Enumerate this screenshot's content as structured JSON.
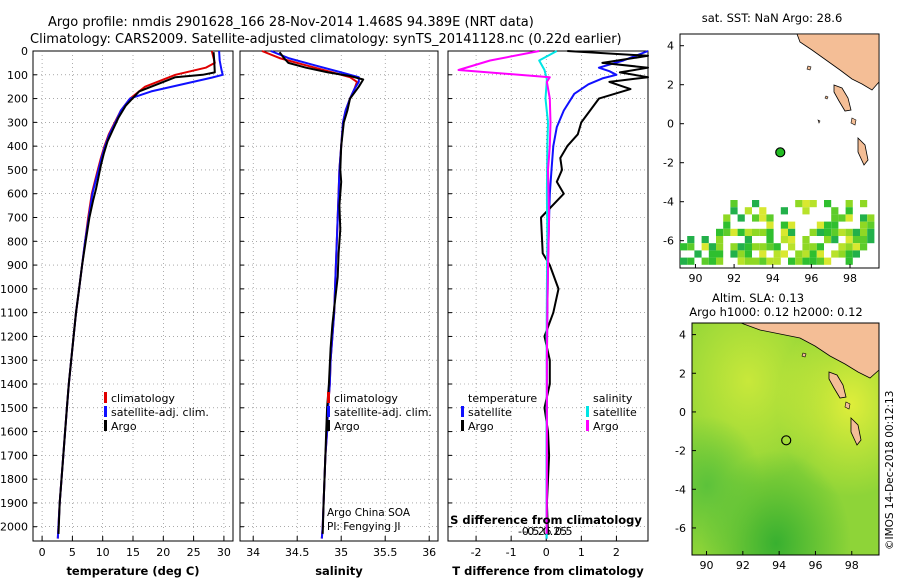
{
  "header": {
    "title_line1": "Argo profile: nmdis 2901628_166 28-Nov-2014 1.468S 94.389E (NRT data)",
    "title_line2": "Climatology: CARS2009. Satellite-adjusted climatology: synTS_20141128.nc (0.22d earlier)"
  },
  "colors": {
    "climatology": "#e00000",
    "satellite": "#1010ff",
    "argo": "#000000",
    "sal_satellite": "#00e5e5",
    "sal_argo": "#ff00ff"
  },
  "depth_axis": {
    "min": 0,
    "max": 2060,
    "ticks": [
      0,
      100,
      200,
      300,
      400,
      500,
      600,
      700,
      800,
      900,
      1000,
      1100,
      1200,
      1300,
      1400,
      1500,
      1600,
      1700,
      1800,
      1900,
      2000
    ]
  },
  "chart_data": [
    {
      "type": "line",
      "id": "temperature",
      "xlabel": "temperature (deg C)",
      "xlim": [
        -1.5,
        31.5
      ],
      "xticks": [
        0,
        5,
        10,
        15,
        20,
        25,
        30
      ],
      "legend": [
        "climatology",
        "satellite-adj. clim.",
        "Argo"
      ],
      "series": [
        {
          "name": "climatology",
          "color_key": "climatology",
          "x": [
            28.0,
            28.5,
            27.0,
            22.0,
            17.0,
            14.5,
            13.0,
            12.0,
            11.0,
            10.3,
            9.7,
            9.2,
            8.7,
            8.2,
            7.6,
            7.1,
            6.6,
            6.1,
            5.6,
            5.2,
            4.8,
            4.4,
            4.1,
            3.8,
            3.5,
            3.2,
            2.9,
            2.6
          ],
          "depth": [
            0,
            50,
            70,
            100,
            150,
            200,
            250,
            300,
            350,
            400,
            450,
            500,
            550,
            600,
            700,
            800,
            900,
            1000,
            1100,
            1200,
            1300,
            1400,
            1500,
            1600,
            1700,
            1800,
            1900,
            2050
          ]
        },
        {
          "name": "satellite-adj. clim.",
          "color_key": "satellite",
          "x": [
            29.2,
            29.3,
            29.6,
            29.8,
            28.0,
            18.0,
            14.5,
            13.0,
            12.1,
            11.1,
            10.4,
            9.8,
            9.3,
            8.8,
            8.3,
            7.7,
            7.1,
            6.6,
            6.1,
            5.6,
            5.2,
            4.8,
            4.4,
            4.1,
            3.8,
            3.5,
            3.2,
            2.9,
            2.6
          ],
          "depth": [
            0,
            40,
            80,
            100,
            112,
            170,
            200,
            250,
            300,
            350,
            400,
            450,
            500,
            550,
            600,
            700,
            800,
            900,
            1000,
            1100,
            1200,
            1300,
            1400,
            1500,
            1600,
            1700,
            1800,
            1900,
            2050
          ]
        },
        {
          "name": "Argo",
          "color_key": "argo",
          "x": [
            28.3,
            28.4,
            28.5,
            26.5,
            22.0,
            16.0,
            13.8,
            12.6,
            11.7,
            10.8,
            10.2,
            9.7,
            9.3,
            8.9,
            8.4,
            7.8,
            7.2,
            6.6,
            6.1,
            5.6,
            5.2,
            4.8,
            4.4,
            4.1,
            3.8,
            3.5,
            3.2,
            2.9,
            2.7
          ],
          "depth": [
            5,
            40,
            90,
            100,
            110,
            170,
            230,
            280,
            330,
            380,
            430,
            480,
            530,
            580,
            630,
            700,
            800,
            900,
            1000,
            1100,
            1200,
            1300,
            1400,
            1500,
            1600,
            1700,
            1800,
            1900,
            2030
          ]
        }
      ]
    },
    {
      "type": "line",
      "id": "salinity",
      "xlabel": "salinity",
      "xlim": [
        33.85,
        36.1
      ],
      "xticks": [
        34,
        34.5,
        35,
        35.5,
        36
      ],
      "xticklabels": [
        "34",
        "34.5",
        "35",
        "35.5",
        "36"
      ],
      "legend": [
        "climatology",
        "satellite-adj. clim.",
        "Argo"
      ],
      "annotation": [
        "Argo China SOA",
        "PI: Fengying JI"
      ],
      "series": [
        {
          "name": "climatology",
          "color_key": "climatology",
          "x": [
            34.1,
            34.3,
            34.6,
            34.9,
            35.1,
            35.18,
            35.15,
            35.1,
            35.05,
            35.02,
            35.0,
            34.98,
            34.97,
            34.96,
            34.95,
            34.94,
            34.93,
            34.92,
            34.9,
            34.88,
            34.87,
            34.85,
            34.84,
            34.82,
            34.81,
            34.8,
            34.79,
            34.78
          ],
          "depth": [
            0,
            30,
            60,
            90,
            110,
            130,
            160,
            200,
            250,
            300,
            400,
            500,
            600,
            700,
            800,
            900,
            1000,
            1100,
            1200,
            1300,
            1400,
            1500,
            1600,
            1700,
            1800,
            1900,
            2000,
            2050
          ]
        },
        {
          "name": "satellite-adj. clim.",
          "color_key": "satellite",
          "x": [
            34.2,
            34.4,
            34.7,
            35.0,
            35.2,
            35.2,
            35.15,
            35.1,
            35.05,
            35.02,
            35.0,
            34.98,
            34.97,
            34.96,
            34.95,
            34.94,
            34.93,
            34.92,
            34.9,
            34.88,
            34.87,
            34.85,
            34.84,
            34.82,
            34.81,
            34.8,
            34.79,
            34.78
          ],
          "depth": [
            0,
            30,
            60,
            90,
            110,
            130,
            160,
            200,
            250,
            300,
            400,
            500,
            600,
            700,
            800,
            900,
            1000,
            1100,
            1200,
            1300,
            1400,
            1500,
            1600,
            1700,
            1800,
            1900,
            2000,
            2050
          ]
        },
        {
          "name": "Argo",
          "color_key": "argo",
          "x": [
            34.3,
            34.35,
            34.4,
            34.6,
            34.85,
            35.1,
            35.25,
            35.2,
            35.1,
            35.07,
            35.03,
            35.0,
            34.99,
            35.0,
            34.98,
            34.99,
            34.97,
            34.96,
            34.93,
            34.9,
            34.88,
            34.86,
            34.84,
            34.83,
            34.82,
            34.81,
            34.8,
            34.79
          ],
          "depth": [
            5,
            30,
            50,
            70,
            90,
            105,
            120,
            150,
            200,
            250,
            300,
            400,
            500,
            550,
            650,
            750,
            850,
            950,
            1050,
            1150,
            1250,
            1400,
            1500,
            1600,
            1700,
            1800,
            1900,
            2030
          ]
        }
      ]
    },
    {
      "type": "line",
      "id": "differences",
      "xlabel": "T difference from climatology",
      "xlabel_top": "S difference from climatology",
      "xlim": [
        -2.8,
        2.9
      ],
      "xticks": [
        -2,
        -1,
        0,
        1,
        2
      ],
      "xticks_salinity": [
        -0.5,
        -0.25,
        0,
        0.25,
        0.5
      ],
      "xticklabels_salinity": [
        "-0.5",
        "-0.25",
        "0",
        "0.25",
        "0.5"
      ],
      "legend_left_title": "temperature",
      "legend_right_title": "salinity",
      "legend_left": [
        "satellite",
        "Argo"
      ],
      "legend_right": [
        "satellite",
        "Argo"
      ],
      "series": [
        {
          "name": "temperature satellite",
          "color_key": "satellite",
          "x": [
            2.9,
            2.2,
            1.5,
            1.8,
            2.0,
            1.6,
            1.2,
            0.8,
            0.5,
            0.3,
            0.2,
            0.15,
            0.1,
            0.08,
            0.05,
            0.03,
            0.02,
            0.02,
            0.01,
            0.01,
            0.01
          ],
          "depth": [
            0,
            40,
            70,
            85,
            100,
            115,
            140,
            180,
            250,
            320,
            400,
            500,
            600,
            700,
            900,
            1100,
            1300,
            1500,
            1700,
            1900,
            2050
          ]
        },
        {
          "name": "temperature Argo",
          "color_key": "argo",
          "x": [
            0.6,
            2.9,
            1.6,
            2.9,
            2.1,
            2.9,
            1.8,
            2.4,
            1.5,
            1.0,
            0.9,
            0.6,
            0.4,
            0.45,
            0.3,
            0.5,
            -0.15,
            -0.1,
            0.1,
            0.35,
            0.2,
            -0.05,
            0.1,
            0.1,
            -0.05,
            0.05,
            0.08,
            0.05,
            0.02,
            0.05
          ],
          "depth": [
            0,
            20,
            50,
            70,
            90,
            110,
            130,
            160,
            200,
            300,
            350,
            400,
            450,
            500,
            550,
            600,
            700,
            850,
            900,
            1000,
            1100,
            1200,
            1300,
            1400,
            1500,
            1600,
            1700,
            1800,
            1900,
            2030
          ]
        },
        {
          "name": "salinity satellite",
          "color_key": "sal_satellite",
          "x": [
            0.3,
            -0.2,
            -0.05,
            0.02,
            -0.02,
            0.05,
            0.03,
            0.02,
            0.03,
            0.02,
            0.01,
            0.02,
            0.01,
            0.01,
            0.01
          ],
          "depth": [
            0,
            40,
            80,
            120,
            200,
            300,
            400,
            600,
            800,
            1000,
            1200,
            1400,
            1600,
            1800,
            2050
          ]
        },
        {
          "name": "salinity Argo",
          "color_key": "sal_argo",
          "x": [
            -0.2,
            -1.6,
            -2.5,
            0.1,
            0.02,
            0.1,
            0.12,
            0.1,
            0.05,
            0.08,
            0.05,
            0.03,
            0.02,
            0.02,
            0.02,
            0.01
          ],
          "depth": [
            0,
            40,
            80,
            110,
            130,
            200,
            300,
            400,
            500,
            700,
            900,
            1100,
            1300,
            1500,
            1800,
            2030
          ]
        }
      ]
    }
  ],
  "maps": {
    "top": {
      "title": "sat. SST: NaN Argo: 28.6",
      "xticks": [
        90,
        92,
        94,
        96,
        98
      ],
      "yticks": [
        4,
        2,
        0,
        -2,
        -4,
        -6
      ],
      "float_lon": 94.389,
      "float_lat": -1.468
    },
    "bottom": {
      "title_line1": "Altim. SLA: 0.13",
      "title_line2": "Argo h1000: 0.12 h2000: 0.12",
      "xticks": [
        90,
        92,
        94,
        96,
        98
      ],
      "yticks": [
        4,
        2,
        0,
        -2,
        -4,
        -6
      ],
      "float_lon": 94.389,
      "float_lat": -1.468
    },
    "credit": "©IMOS 14-Dec-2018 00:12:13"
  }
}
